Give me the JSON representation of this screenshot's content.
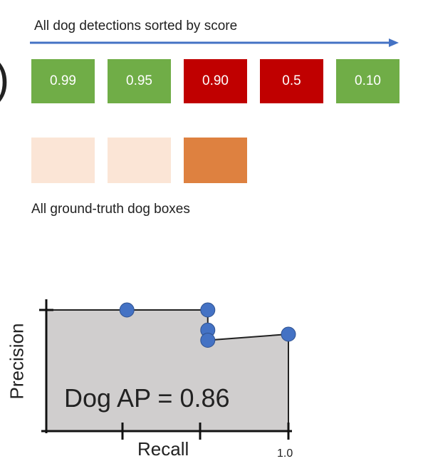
{
  "top": {
    "arrow_caption": "All dog detections sorted by score",
    "arrow_color": "#4472c4"
  },
  "detections": [
    {
      "score": "0.99",
      "color": "#70ad47"
    },
    {
      "score": "0.95",
      "color": "#70ad47"
    },
    {
      "score": "0.90",
      "color": "#c00000"
    },
    {
      "score": "0.5",
      "color": "#c00000"
    },
    {
      "score": "0.10",
      "color": "#70ad47"
    }
  ],
  "ground_truth": {
    "caption": "All ground-truth dog boxes",
    "boxes": [
      {
        "color": "#fbe5d6"
      },
      {
        "color": "#fbe5d6"
      },
      {
        "color": "#de8140"
      }
    ]
  },
  "pr_plot": {
    "annotation": "Dog AP = 0.86",
    "xlabel": "Recall",
    "ylabel": "Precision",
    "xtick_label": "1.0",
    "fill_color": "#d0cece",
    "point_color": "#4472c4"
  },
  "chart_data": {
    "type": "area",
    "title": "",
    "xlabel": "Recall",
    "ylabel": "Precision",
    "xlim": [
      0,
      1.0
    ],
    "ylim": [
      0,
      1.0
    ],
    "points": [
      {
        "recall": 0.333,
        "precision": 1.0
      },
      {
        "recall": 0.667,
        "precision": 1.0
      },
      {
        "recall": 0.667,
        "precision": 0.667
      },
      {
        "recall": 0.667,
        "precision": 0.5
      },
      {
        "recall": 1.0,
        "precision": 0.6
      }
    ],
    "annotation": "Dog AP = 0.86"
  }
}
